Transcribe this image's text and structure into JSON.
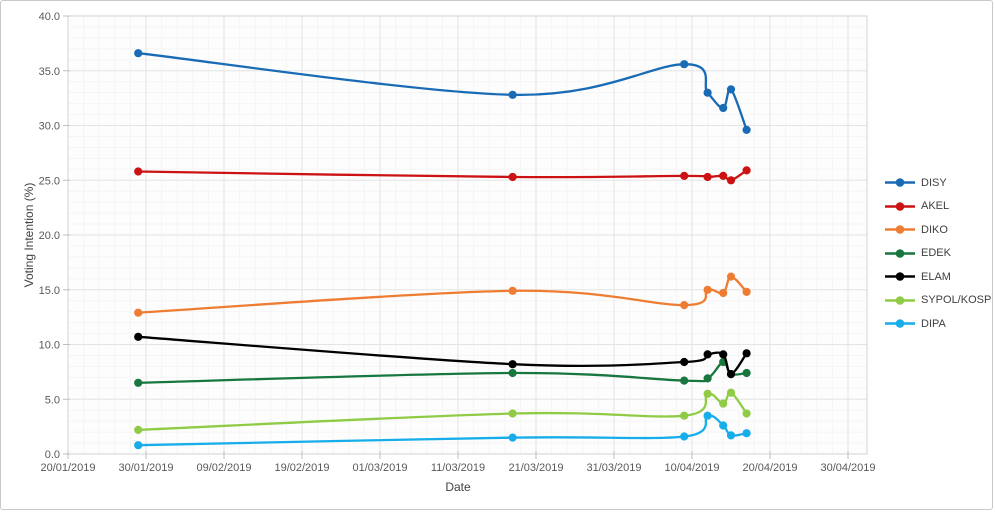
{
  "chart_data": {
    "type": "line",
    "xlabel": "Date",
    "ylabel": "Voting Intention (%)",
    "line_style": "smooth",
    "grid": true,
    "legend_position": "right",
    "ylim": [
      0,
      40
    ],
    "y_ticks": {
      "min": 0,
      "max": 40,
      "step": 5,
      "labels": [
        "0.0",
        "5.0",
        "10.0",
        "15.0",
        "20.0",
        "25.0",
        "30.0",
        "35.0",
        "40.0"
      ]
    },
    "x_ticks": [
      {
        "label": "20/01/2019",
        "day": 0
      },
      {
        "label": "30/01/2019",
        "day": 10
      },
      {
        "label": "09/02/2019",
        "day": 20
      },
      {
        "label": "19/02/2019",
        "day": 30
      },
      {
        "label": "01/03/2019",
        "day": 40
      },
      {
        "label": "11/03/2019",
        "day": 50
      },
      {
        "label": "21/03/2019",
        "day": 60
      },
      {
        "label": "31/03/2019",
        "day": 70
      },
      {
        "label": "10/04/2019",
        "day": 80
      },
      {
        "label": "20/04/2019",
        "day": 90
      },
      {
        "label": "30/04/2019",
        "day": 100
      }
    ],
    "series": [
      {
        "name": "DISY",
        "color": "#1a6bb5",
        "points": [
          {
            "date": "29/01/2019",
            "day": 9,
            "value": 36.6
          },
          {
            "date": "18/03/2019",
            "day": 57,
            "value": 32.8
          },
          {
            "date": "09/04/2019",
            "day": 79,
            "value": 35.6
          },
          {
            "date": "12/04/2019",
            "day": 82,
            "value": 33.0
          },
          {
            "date": "14/04/2019",
            "day": 84,
            "value": 31.6
          },
          {
            "date": "15/04/2019",
            "day": 85,
            "value": 33.3
          },
          {
            "date": "17/04/2019",
            "day": 87,
            "value": 29.6
          }
        ]
      },
      {
        "name": "AKEL",
        "color": "#cc1212",
        "points": [
          {
            "date": "29/01/2019",
            "day": 9,
            "value": 25.8
          },
          {
            "date": "18/03/2019",
            "day": 57,
            "value": 25.3
          },
          {
            "date": "09/04/2019",
            "day": 79,
            "value": 25.4
          },
          {
            "date": "12/04/2019",
            "day": 82,
            "value": 25.3
          },
          {
            "date": "14/04/2019",
            "day": 84,
            "value": 25.4
          },
          {
            "date": "15/04/2019",
            "day": 85,
            "value": 25.0
          },
          {
            "date": "17/04/2019",
            "day": 87,
            "value": 25.9
          }
        ]
      },
      {
        "name": "DIKO",
        "color": "#ee7d33",
        "points": [
          {
            "date": "29/01/2019",
            "day": 9,
            "value": 12.9
          },
          {
            "date": "18/03/2019",
            "day": 57,
            "value": 14.9
          },
          {
            "date": "09/04/2019",
            "day": 79,
            "value": 13.6
          },
          {
            "date": "12/04/2019",
            "day": 82,
            "value": 15.0
          },
          {
            "date": "14/04/2019",
            "day": 84,
            "value": 14.7
          },
          {
            "date": "15/04/2019",
            "day": 85,
            "value": 16.2
          },
          {
            "date": "17/04/2019",
            "day": 87,
            "value": 14.8
          }
        ]
      },
      {
        "name": "EDEK",
        "color": "#17773f",
        "points": [
          {
            "date": "29/01/2019",
            "day": 9,
            "value": 6.5
          },
          {
            "date": "18/03/2019",
            "day": 57,
            "value": 7.4
          },
          {
            "date": "09/04/2019",
            "day": 79,
            "value": 6.7
          },
          {
            "date": "12/04/2019",
            "day": 82,
            "value": 6.9
          },
          {
            "date": "14/04/2019",
            "day": 84,
            "value": 8.4
          },
          {
            "date": "15/04/2019",
            "day": 85,
            "value": 7.3
          },
          {
            "date": "17/04/2019",
            "day": 87,
            "value": 7.4
          }
        ]
      },
      {
        "name": "ELAM",
        "color": "#000000",
        "points": [
          {
            "date": "29/01/2019",
            "day": 9,
            "value": 10.7
          },
          {
            "date": "18/03/2019",
            "day": 57,
            "value": 8.2
          },
          {
            "date": "09/04/2019",
            "day": 79,
            "value": 8.4
          },
          {
            "date": "12/04/2019",
            "day": 82,
            "value": 9.1
          },
          {
            "date": "14/04/2019",
            "day": 84,
            "value": 9.1
          },
          {
            "date": "15/04/2019",
            "day": 85,
            "value": 7.3
          },
          {
            "date": "17/04/2019",
            "day": 87,
            "value": 9.2
          }
        ]
      },
      {
        "name": "SYPOL/KOSP",
        "color": "#8fcb45",
        "points": [
          {
            "date": "29/01/2019",
            "day": 9,
            "value": 2.2
          },
          {
            "date": "18/03/2019",
            "day": 57,
            "value": 3.7
          },
          {
            "date": "09/04/2019",
            "day": 79,
            "value": 3.5
          },
          {
            "date": "12/04/2019",
            "day": 82,
            "value": 5.5
          },
          {
            "date": "14/04/2019",
            "day": 84,
            "value": 4.6
          },
          {
            "date": "15/04/2019",
            "day": 85,
            "value": 5.6
          },
          {
            "date": "17/04/2019",
            "day": 87,
            "value": 3.7
          }
        ]
      },
      {
        "name": "DIPA",
        "color": "#17adea",
        "points": [
          {
            "date": "29/01/2019",
            "day": 9,
            "value": 0.8
          },
          {
            "date": "18/03/2019",
            "day": 57,
            "value": 1.5
          },
          {
            "date": "09/04/2019",
            "day": 79,
            "value": 1.6
          },
          {
            "date": "12/04/2019",
            "day": 82,
            "value": 3.5
          },
          {
            "date": "14/04/2019",
            "day": 84,
            "value": 2.6
          },
          {
            "date": "15/04/2019",
            "day": 85,
            "value": 1.7
          },
          {
            "date": "17/04/2019",
            "day": 87,
            "value": 1.9
          }
        ]
      }
    ],
    "style_colors": {
      "major_grid": "#e4e4e4",
      "minor_grid": "#f5f5f5",
      "plot_border": "#d2d2d2",
      "tick_mark": "#bfbfbf",
      "tick_label": "#595959",
      "axis_title": "#404040"
    }
  }
}
